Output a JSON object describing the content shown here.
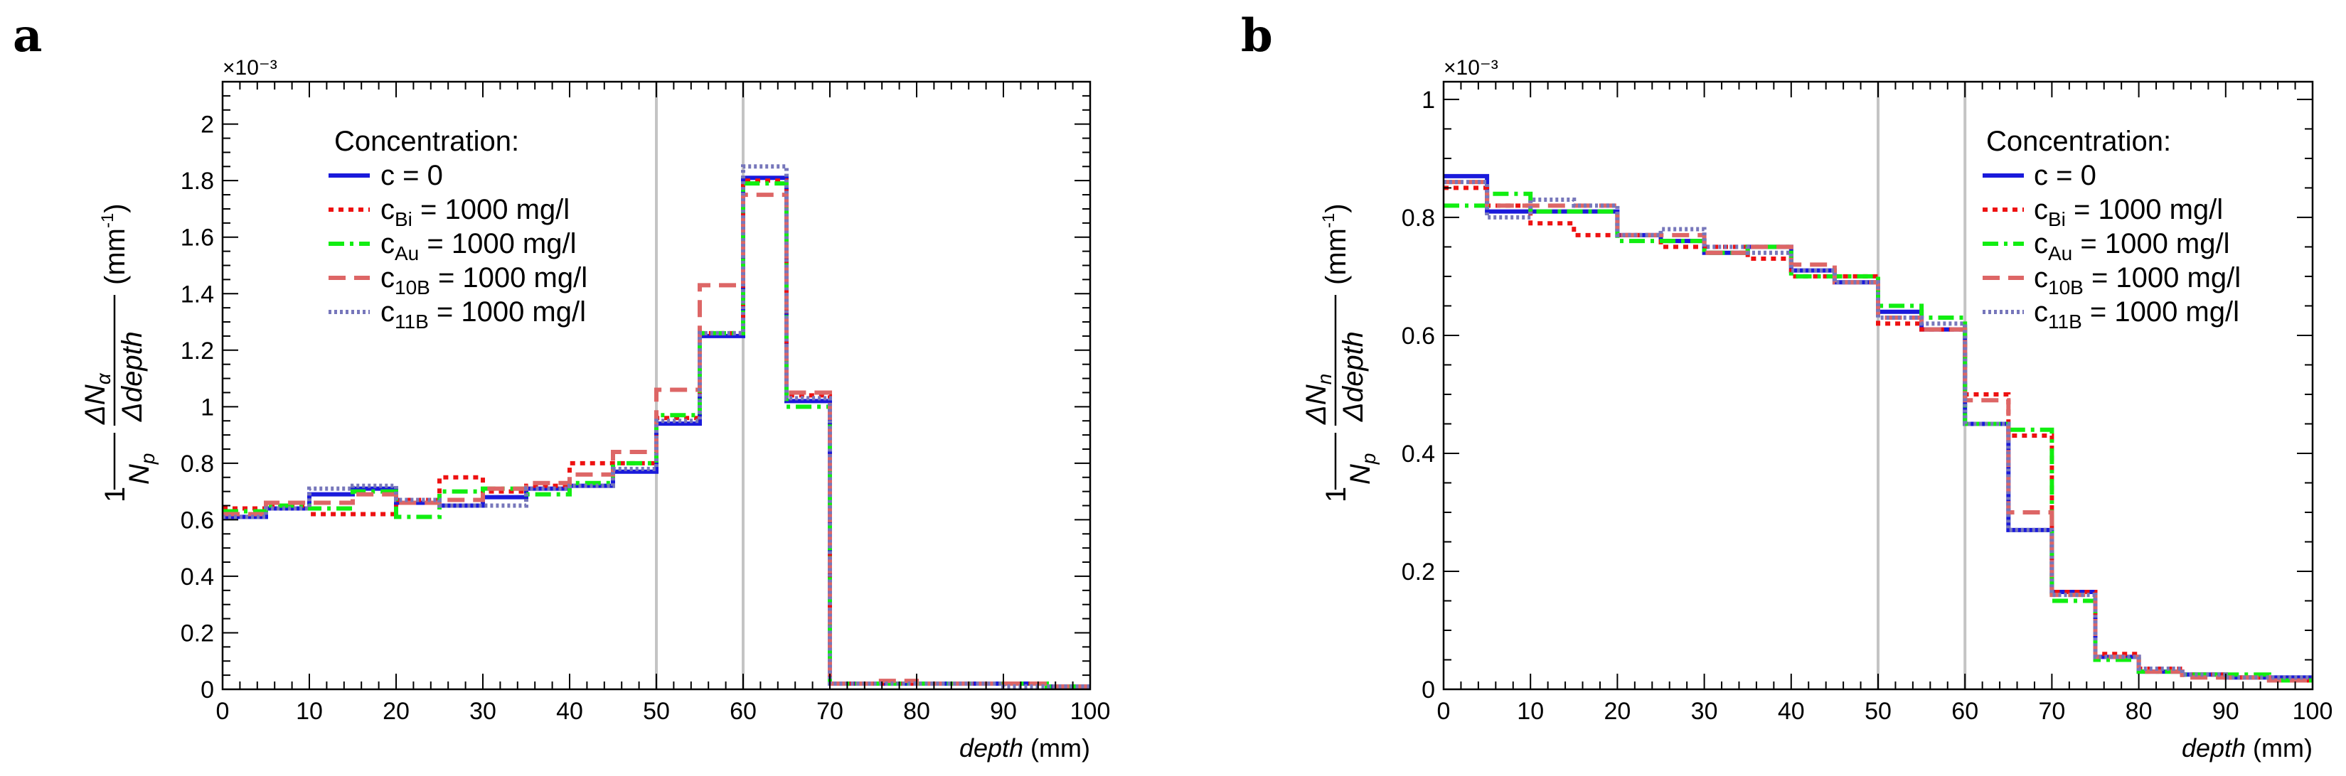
{
  "chart_data": [
    {
      "panel": "a",
      "type": "line",
      "step": true,
      "bin_width": 5,
      "xlim": [
        0,
        100
      ],
      "ylim": [
        0,
        2.15
      ],
      "exponent": "×10⁻³",
      "xticks": [
        0,
        10,
        20,
        30,
        40,
        50,
        60,
        70,
        80,
        90,
        100
      ],
      "yticks": [
        0,
        0.2,
        0.4,
        0.6,
        0.8,
        1,
        1.2,
        1.4,
        1.6,
        1.8,
        2
      ],
      "yticklabels": [
        "0",
        "0.2",
        "0.4",
        "0.6",
        "0.8",
        "1",
        "1.2",
        "1.4",
        "1.6",
        "1.8",
        "2"
      ],
      "xlabel": {
        "italic": "depth",
        "rest": " (mm)"
      },
      "ylabel": {
        "one": "1",
        "np": "N",
        "np_sub": "p",
        "num": "ΔN",
        "num_sub": "α",
        "den": "Δdepth",
        "unit": "(mm",
        "unit_sup": "-1",
        "unit_close": ")"
      },
      "vlines": [
        50,
        60
      ],
      "legend": {
        "position": "top-left",
        "title": "Concentration:",
        "entries": [
          {
            "main": "c = 0",
            "sub": "",
            "rest": ""
          },
          {
            "main": "c",
            "sub": "Bi",
            "rest": " = 1000 mg/l"
          },
          {
            "main": "c",
            "sub": "Au",
            "rest": " = 1000 mg/l"
          },
          {
            "main": "c",
            "sub": "10B",
            "rest": " = 1000 mg/l"
          },
          {
            "main": "c",
            "sub": "11B",
            "rest": " = 1000 mg/l"
          }
        ]
      },
      "series": [
        {
          "name": "c = 0",
          "color": "#1a1adb",
          "dash": "",
          "width": 6,
          "values": [
            0.61,
            0.64,
            0.69,
            0.71,
            0.66,
            0.65,
            0.68,
            0.71,
            0.72,
            0.77,
            0.94,
            1.25,
            1.81,
            1.02,
            0.02,
            0.02,
            0.02,
            0.02,
            0.02,
            0.01
          ]
        },
        {
          "name": "c_Bi = 1000 mg/l",
          "color": "#ee1111",
          "dash": "7,7",
          "width": 6,
          "values": [
            0.64,
            0.65,
            0.62,
            0.62,
            0.67,
            0.75,
            0.7,
            0.72,
            0.8,
            0.8,
            0.96,
            1.26,
            1.8,
            1.04,
            0.02,
            0.02,
            0.02,
            0.02,
            0.02,
            0.01
          ]
        },
        {
          "name": "c_Au = 1000 mg/l",
          "color": "#11ee11",
          "dash": "22,8,5,8",
          "width": 6,
          "values": [
            0.63,
            0.65,
            0.64,
            0.7,
            0.61,
            0.7,
            0.71,
            0.69,
            0.73,
            0.8,
            0.97,
            1.26,
            1.79,
            1.0,
            0.02,
            0.02,
            0.02,
            0.02,
            0.02,
            0.01
          ]
        },
        {
          "name": "c_10B = 1000 mg/l",
          "color": "#dd6666",
          "dash": "24,12",
          "width": 6,
          "values": [
            0.62,
            0.66,
            0.66,
            0.69,
            0.66,
            0.67,
            0.71,
            0.73,
            0.76,
            0.84,
            1.06,
            1.43,
            1.75,
            1.05,
            0.02,
            0.03,
            0.02,
            0.02,
            0.02,
            0.01
          ]
        },
        {
          "name": "c_11B = 1000 mg/l",
          "color": "#7777bb",
          "dash": "4,4",
          "width": 6,
          "values": [
            0.61,
            0.64,
            0.71,
            0.72,
            0.67,
            0.65,
            0.65,
            0.71,
            0.72,
            0.78,
            0.95,
            1.26,
            1.85,
            1.03,
            0.02,
            0.02,
            0.02,
            0.02,
            0.01,
            0.01
          ]
        }
      ]
    },
    {
      "panel": "b",
      "type": "line",
      "step": true,
      "bin_width": 5,
      "xlim": [
        0,
        100
      ],
      "ylim": [
        0,
        1.03
      ],
      "exponent": "×10⁻³",
      "xticks": [
        0,
        10,
        20,
        30,
        40,
        50,
        60,
        70,
        80,
        90,
        100
      ],
      "yticks": [
        0,
        0.2,
        0.4,
        0.6,
        0.8,
        1
      ],
      "yticklabels": [
        "0",
        "0.2",
        "0.4",
        "0.6",
        "0.8",
        "1"
      ],
      "xlabel": {
        "italic": "depth",
        "rest": " (mm)"
      },
      "ylabel": {
        "one": "1",
        "np": "N",
        "np_sub": "p",
        "num": "ΔN",
        "num_sub": "n",
        "den": "Δdepth",
        "unit": "(mm",
        "unit_sup": "-1",
        "unit_close": ")"
      },
      "vlines": [
        50,
        60
      ],
      "legend": {
        "position": "top-right",
        "title": "Concentration:",
        "entries": [
          {
            "main": "c = 0",
            "sub": "",
            "rest": ""
          },
          {
            "main": "c",
            "sub": "Bi",
            "rest": " = 1000 mg/l"
          },
          {
            "main": "c",
            "sub": "Au",
            "rest": " = 1000 mg/l"
          },
          {
            "main": "c",
            "sub": "10B",
            "rest": " = 1000 mg/l"
          },
          {
            "main": "c",
            "sub": "11B",
            "rest": " = 1000 mg/l"
          }
        ]
      },
      "series": [
        {
          "name": "c = 0",
          "color": "#1a1adb",
          "dash": "",
          "width": 6,
          "values": [
            0.87,
            0.81,
            0.81,
            0.81,
            0.77,
            0.76,
            0.74,
            0.75,
            0.71,
            0.69,
            0.64,
            0.61,
            0.45,
            0.27,
            0.165,
            0.055,
            0.03,
            0.025,
            0.02,
            0.02
          ]
        },
        {
          "name": "c_Bi = 1000 mg/l",
          "color": "#ee1111",
          "dash": "7,7",
          "width": 6,
          "values": [
            0.85,
            0.82,
            0.79,
            0.77,
            0.77,
            0.75,
            0.75,
            0.73,
            0.7,
            0.7,
            0.62,
            0.61,
            0.5,
            0.43,
            0.165,
            0.06,
            0.035,
            0.025,
            0.02,
            0.015
          ]
        },
        {
          "name": "c_Au = 1000 mg/l",
          "color": "#11ee11",
          "dash": "22,8,5,8",
          "width": 6,
          "values": [
            0.82,
            0.84,
            0.81,
            0.81,
            0.76,
            0.76,
            0.74,
            0.75,
            0.7,
            0.7,
            0.65,
            0.63,
            0.45,
            0.44,
            0.15,
            0.05,
            0.03,
            0.025,
            0.025,
            0.015
          ]
        },
        {
          "name": "c_10B = 1000 mg/l",
          "color": "#dd6666",
          "dash": "24,12",
          "width": 6,
          "values": [
            0.86,
            0.82,
            0.82,
            0.82,
            0.77,
            0.77,
            0.74,
            0.75,
            0.72,
            0.69,
            0.63,
            0.61,
            0.49,
            0.3,
            0.16,
            0.055,
            0.03,
            0.02,
            0.02,
            0.015
          ]
        },
        {
          "name": "c_11B = 1000 mg/l",
          "color": "#7777bb",
          "dash": "4,4",
          "width": 6,
          "values": [
            0.86,
            0.8,
            0.83,
            0.82,
            0.77,
            0.78,
            0.75,
            0.74,
            0.71,
            0.69,
            0.63,
            0.62,
            0.45,
            0.27,
            0.16,
            0.055,
            0.035,
            0.025,
            0.02,
            0.02
          ]
        }
      ]
    }
  ]
}
